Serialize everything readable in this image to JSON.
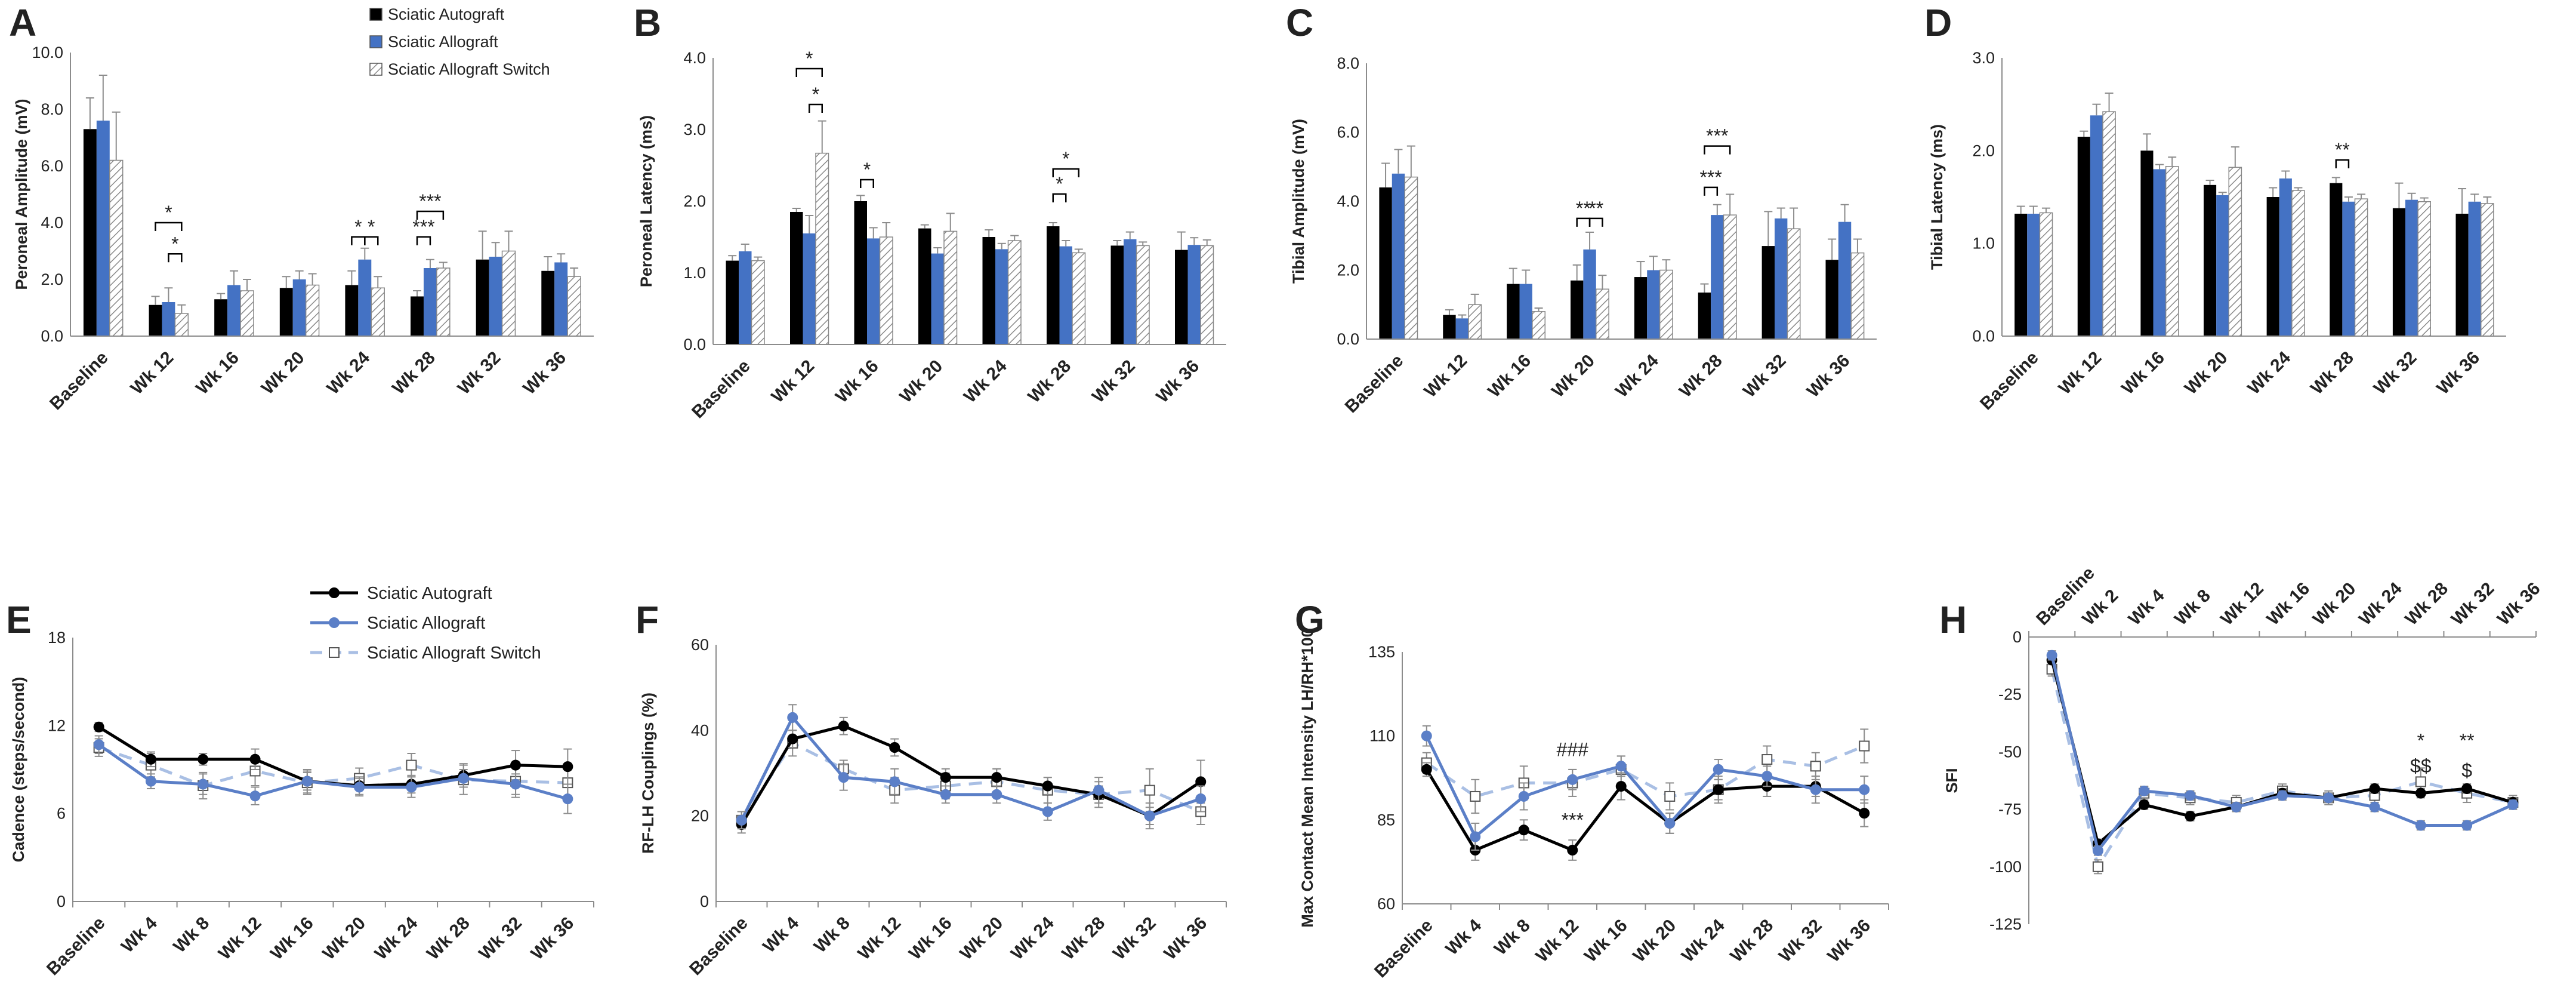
{
  "colors": {
    "autograft": "#000000",
    "allograft": "#4472c4",
    "allograft_light": "#5b7fc7",
    "switch_line": "#a9bfe4",
    "axis": "#8c8c8c",
    "text": "#222222",
    "marker_fill": "#ffffff"
  },
  "legend_top": {
    "items": [
      "Sciatic Autograft",
      "Sciatic Allograft",
      "Sciatic Allograft Switch"
    ]
  },
  "legend_bottom": {
    "items": [
      "Sciatic Autograft",
      "Sciatic Allograft",
      "Sciatic Allograft Switch"
    ]
  },
  "chart_data": [
    {
      "panel": "A",
      "type": "bar",
      "ylabel": "Peroneal Amplitude (mV)",
      "ylim": [
        0,
        10
      ],
      "yticks": [
        "0.0",
        "2.0",
        "4.0",
        "6.0",
        "8.0",
        "10.0"
      ],
      "categories": [
        "Baseline",
        "Wk 12",
        "Wk 16",
        "Wk 20",
        "Wk 24",
        "Wk 28",
        "Wk 32",
        "Wk 36"
      ],
      "series": [
        {
          "name": "Sciatic Autograft",
          "values": [
            7.3,
            1.1,
            1.3,
            1.7,
            1.8,
            1.4,
            2.7,
            2.3
          ],
          "err": [
            1.1,
            0.3,
            0.2,
            0.4,
            0.5,
            0.2,
            1.0,
            0.5
          ]
        },
        {
          "name": "Sciatic Allograft",
          "values": [
            7.6,
            1.2,
            1.8,
            2.0,
            2.7,
            2.4,
            2.8,
            2.6
          ],
          "err": [
            1.6,
            0.5,
            0.5,
            0.3,
            0.4,
            0.3,
            0.5,
            0.3
          ]
        },
        {
          "name": "Sciatic Allograft Switch",
          "values": [
            6.2,
            0.8,
            1.6,
            1.8,
            1.7,
            2.4,
            3.0,
            2.1
          ],
          "err": [
            1.7,
            0.3,
            0.4,
            0.4,
            0.4,
            0.2,
            0.7,
            0.3
          ]
        }
      ],
      "annotations": [
        {
          "text": "*",
          "cat": 1,
          "from": 0,
          "to": 2,
          "level": 4.0
        },
        {
          "text": "*",
          "cat": 1,
          "from": 1,
          "to": 2,
          "level": 2.9
        },
        {
          "text": "*",
          "cat": 4,
          "from": 0,
          "to": 1,
          "level": 3.5
        },
        {
          "text": "*",
          "cat": 4,
          "from": 1,
          "to": 2,
          "level": 3.5
        },
        {
          "text": "***",
          "cat": 5,
          "from": 0,
          "to": 2,
          "level": 4.4
        },
        {
          "text": "***",
          "cat": 5,
          "from": 0,
          "to": 1,
          "level": 3.5
        }
      ]
    },
    {
      "panel": "B",
      "type": "bar",
      "ylabel": "Peroneal Latency (ms)",
      "ylim": [
        0,
        4
      ],
      "yticks": [
        "0.0",
        "1.0",
        "2.0",
        "3.0",
        "4.0"
      ],
      "categories": [
        "Baseline",
        "Wk 12",
        "Wk 16",
        "Wk 20",
        "Wk 24",
        "Wk 28",
        "Wk 32",
        "Wk 36"
      ],
      "series": [
        {
          "name": "Sciatic Autograft",
          "values": [
            1.17,
            1.85,
            2.0,
            1.62,
            1.5,
            1.65,
            1.38,
            1.32
          ],
          "err": [
            0.07,
            0.05,
            0.08,
            0.05,
            0.1,
            0.05,
            0.07,
            0.25
          ]
        },
        {
          "name": "Sciatic Allograft",
          "values": [
            1.3,
            1.55,
            1.48,
            1.27,
            1.33,
            1.37,
            1.47,
            1.39
          ],
          "err": [
            0.1,
            0.25,
            0.15,
            0.08,
            0.08,
            0.08,
            0.1,
            0.1
          ]
        },
        {
          "name": "Sciatic Allograft Switch",
          "values": [
            1.17,
            2.67,
            1.5,
            1.58,
            1.45,
            1.28,
            1.38,
            1.38
          ],
          "err": [
            0.05,
            0.45,
            0.2,
            0.25,
            0.07,
            0.05,
            0.05,
            0.08
          ]
        }
      ],
      "annotations": [
        {
          "text": "*",
          "cat": 1,
          "from": 0,
          "to": 2,
          "level": 3.85
        },
        {
          "text": "*",
          "cat": 1,
          "from": 1,
          "to": 2,
          "level": 3.35
        },
        {
          "text": "*",
          "cat": 2,
          "from": 0,
          "to": 1,
          "level": 2.3
        },
        {
          "text": "*",
          "cat": 5,
          "from": 0,
          "to": 1,
          "level": 2.1
        },
        {
          "text": "*",
          "cat": 5,
          "from": 0,
          "to": 2,
          "level": 2.45
        }
      ]
    },
    {
      "panel": "C",
      "type": "bar",
      "ylabel": "Tibial Amplitude (mV)",
      "ylim": [
        0,
        8
      ],
      "yticks": [
        "0.0",
        "2.0",
        "4.0",
        "6.0",
        "8.0"
      ],
      "categories": [
        "Baseline",
        "Wk 12",
        "Wk 16",
        "Wk 20",
        "Wk 24",
        "Wk 28",
        "Wk 32",
        "Wk 36"
      ],
      "series": [
        {
          "name": "Sciatic Autograft",
          "values": [
            4.4,
            0.7,
            1.6,
            1.7,
            1.8,
            1.35,
            2.7,
            2.3
          ],
          "err": [
            0.7,
            0.15,
            0.45,
            0.45,
            0.45,
            0.25,
            1.0,
            0.6
          ]
        },
        {
          "name": "Sciatic Allograft",
          "values": [
            4.8,
            0.6,
            1.6,
            2.6,
            2.0,
            3.6,
            3.5,
            3.4
          ],
          "err": [
            0.7,
            0.1,
            0.4,
            0.5,
            0.4,
            0.3,
            0.3,
            0.5
          ]
        },
        {
          "name": "Sciatic Allograft Switch",
          "values": [
            4.7,
            1.0,
            0.8,
            1.45,
            2.0,
            3.6,
            3.2,
            2.5
          ],
          "err": [
            0.9,
            0.3,
            0.1,
            0.4,
            0.3,
            0.6,
            0.6,
            0.4
          ]
        }
      ],
      "annotations": [
        {
          "text": "**",
          "cat": 3,
          "from": 0,
          "to": 1,
          "level": 3.5
        },
        {
          "text": "**",
          "cat": 3,
          "from": 1,
          "to": 2,
          "level": 3.5
        },
        {
          "text": "***",
          "cat": 5,
          "from": 0,
          "to": 2,
          "level": 5.6
        },
        {
          "text": "***",
          "cat": 5,
          "from": 0,
          "to": 1,
          "level": 4.4
        }
      ]
    },
    {
      "panel": "D",
      "type": "bar",
      "ylabel": "Tibial Latency (ms)",
      "ylim": [
        0,
        3
      ],
      "yticks": [
        "0.0",
        "1.0",
        "2.0",
        "3.0"
      ],
      "categories": [
        "Baseline",
        "Wk 12",
        "Wk 16",
        "Wk 20",
        "Wk 24",
        "Wk 28",
        "Wk 32",
        "Wk 36"
      ],
      "series": [
        {
          "name": "Sciatic Autograft",
          "values": [
            1.32,
            2.15,
            2.0,
            1.63,
            1.5,
            1.65,
            1.38,
            1.32
          ],
          "err": [
            0.08,
            0.06,
            0.18,
            0.05,
            0.1,
            0.06,
            0.27,
            0.27
          ]
        },
        {
          "name": "Sciatic Allograft",
          "values": [
            1.32,
            2.38,
            1.8,
            1.52,
            1.7,
            1.45,
            1.47,
            1.45
          ],
          "err": [
            0.08,
            0.12,
            0.05,
            0.03,
            0.08,
            0.05,
            0.07,
            0.08
          ]
        },
        {
          "name": "Sciatic Allograft Switch",
          "values": [
            1.33,
            2.42,
            1.83,
            1.82,
            1.57,
            1.48,
            1.45,
            1.43
          ],
          "err": [
            0.05,
            0.2,
            0.1,
            0.22,
            0.03,
            0.05,
            0.04,
            0.07
          ]
        }
      ],
      "annotations": [
        {
          "text": "**",
          "cat": 5,
          "from": 0,
          "to": 1,
          "level": 1.9
        }
      ]
    },
    {
      "panel": "E",
      "type": "line",
      "ylabel": "Cadence (steps/second)",
      "ylim": [
        0,
        18
      ],
      "yticks": [
        "0",
        "6",
        "12",
        "18"
      ],
      "categories": [
        "Baseline",
        "Wk 4",
        "Wk 8",
        "Wk 12",
        "Wk 16",
        "Wk 20",
        "Wk 24",
        "Wk 28",
        "Wk 32",
        "Wk 36"
      ],
      "series": [
        {
          "name": "Sciatic Autograft",
          "values": [
            11.9,
            9.7,
            9.7,
            9.7,
            8.2,
            7.9,
            8.0,
            8.6,
            9.3,
            9.2
          ],
          "err": [
            0.3,
            0.5,
            0.4,
            0.7,
            0.8,
            0.6,
            0.6,
            0.8,
            1.0,
            1.2
          ]
        },
        {
          "name": "Sciatic Allograft",
          "values": [
            10.7,
            8.2,
            8.0,
            7.2,
            8.2,
            7.8,
            7.8,
            8.4,
            8.0,
            7.0
          ],
          "err": [
            0.6,
            0.5,
            0.7,
            0.6,
            0.6,
            0.6,
            0.7,
            0.6,
            0.7,
            1.0
          ]
        },
        {
          "name": "Sciatic Allograft Switch",
          "values": [
            10.5,
            9.3,
            7.9,
            8.9,
            8.1,
            8.4,
            9.3,
            8.3,
            8.2,
            8.1
          ],
          "err": [
            0.6,
            0.8,
            0.9,
            1.0,
            0.8,
            0.7,
            0.8,
            1.0,
            1.1,
            1.2
          ]
        }
      ],
      "annotations": []
    },
    {
      "panel": "F",
      "type": "line",
      "ylabel": "RF-LH Couplings (%)",
      "ylim": [
        0,
        60
      ],
      "yticks": [
        "0",
        "20",
        "40",
        "60"
      ],
      "categories": [
        "Baseline",
        "Wk 4",
        "Wk 8",
        "Wk 12",
        "Wk 16",
        "Wk 20",
        "Wk 24",
        "Wk 28",
        "Wk 32",
        "Wk 36"
      ],
      "series": [
        {
          "name": "Sciatic Autograft",
          "values": [
            18,
            38,
            41,
            36,
            29,
            29,
            27,
            25,
            20,
            28
          ],
          "err": [
            2,
            2,
            2,
            2,
            2,
            2,
            2,
            2,
            2,
            5
          ]
        },
        {
          "name": "Sciatic Allograft",
          "values": [
            19,
            43,
            29,
            28,
            25,
            25,
            21,
            26,
            20,
            24
          ],
          "err": [
            2,
            3,
            3,
            3,
            2,
            2,
            2,
            3,
            3,
            3
          ]
        },
        {
          "name": "Sciatic Allograft Switch",
          "values": [
            19,
            37,
            31,
            26,
            27,
            28,
            26,
            25,
            26,
            21
          ],
          "err": [
            2,
            3,
            2,
            3,
            3,
            3,
            3,
            3,
            5,
            3
          ]
        }
      ],
      "annotations": []
    },
    {
      "panel": "G",
      "type": "line",
      "ylabel": "Max Contact Mean Intensity LH/RH*100",
      "ylim": [
        60,
        135
      ],
      "yticks": [
        "60",
        "85",
        "110",
        "135"
      ],
      "categories": [
        "Baseline",
        "Wk 4",
        "Wk 8",
        "Wk 12",
        "Wk 16",
        "Wk 20",
        "Wk 24",
        "Wk 28",
        "Wk 32",
        "Wk 36"
      ],
      "series": [
        {
          "name": "Sciatic Autograft",
          "values": [
            100,
            76,
            82,
            76,
            95,
            84,
            94,
            95,
            95,
            87
          ],
          "err": [
            2,
            3,
            3,
            3,
            4,
            3,
            3,
            3,
            3,
            4
          ]
        },
        {
          "name": "Sciatic Allograft",
          "values": [
            110,
            80,
            92,
            97,
            101,
            84,
            100,
            98,
            94,
            94
          ],
          "err": [
            3,
            4,
            4,
            3,
            3,
            3,
            3,
            3,
            4,
            4
          ]
        },
        {
          "name": "Sciatic Allograft Switch",
          "values": [
            102,
            92,
            96,
            96,
            100,
            92,
            94,
            103,
            101,
            107
          ],
          "err": [
            3,
            5,
            5,
            4,
            4,
            4,
            4,
            4,
            4,
            5
          ]
        }
      ],
      "annotations": [
        {
          "text": "###",
          "cat": 3,
          "level": 104
        },
        {
          "text": "***",
          "cat": 3,
          "level": 83
        }
      ]
    },
    {
      "panel": "H",
      "type": "line",
      "ylabel": "SFI",
      "ylim": [
        -125,
        0
      ],
      "yticks": [
        "0",
        "-25",
        "-50",
        "-75",
        "-100",
        "-125"
      ],
      "categories": [
        "Baseline",
        "Wk 2",
        "Wk 4",
        "Wk 8",
        "Wk 12",
        "Wk 16",
        "Wk 20",
        "Wk 24",
        "Wk 28",
        "Wk 32",
        "Wk 36"
      ],
      "series": [
        {
          "name": "Sciatic Autograft",
          "values": [
            -10,
            -90,
            -73,
            -78,
            -74,
            -68,
            -70,
            -66,
            -68,
            -66,
            -72
          ],
          "err": [
            2,
            2,
            2,
            2,
            2,
            2,
            2,
            2,
            2,
            2,
            2
          ]
        },
        {
          "name": "Sciatic Allograft",
          "values": [
            -8,
            -93,
            -67,
            -69,
            -74,
            -69,
            -70,
            -74,
            -82,
            -82,
            -73
          ],
          "err": [
            2,
            2,
            2,
            2,
            2,
            2,
            2,
            2,
            2,
            2,
            2
          ]
        },
        {
          "name": "Sciatic Allograft Switch",
          "values": [
            -14,
            -100,
            -68,
            -70,
            -72,
            -67,
            -70,
            -69,
            -63,
            -68,
            -72
          ],
          "err": [
            3,
            3,
            3,
            3,
            3,
            3,
            3,
            3,
            6,
            4,
            3
          ]
        }
      ],
      "annotations": [
        {
          "text": "*",
          "cat": 8,
          "level": -48
        },
        {
          "text": "$$",
          "cat": 8,
          "level": -59
        },
        {
          "text": "**",
          "cat": 9,
          "level": -48
        },
        {
          "text": "$",
          "cat": 9,
          "level": -61
        }
      ]
    }
  ]
}
